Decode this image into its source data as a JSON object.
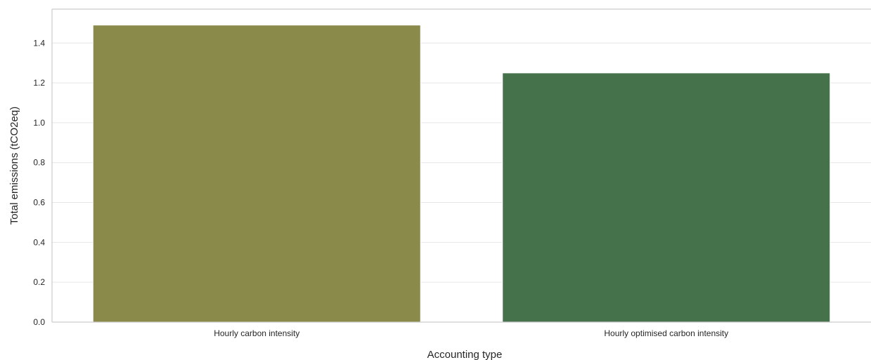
{
  "chart_data": {
    "type": "bar",
    "title": "",
    "xlabel": "Accounting type",
    "ylabel": "Total emissions (tCO2eq)",
    "categories": [
      "Hourly carbon intensity",
      "Hourly optimised carbon intensity"
    ],
    "values": [
      1.49,
      1.25
    ],
    "colors": [
      "#8a8a4b",
      "#45724b"
    ],
    "ylim": [
      0,
      1.57
    ],
    "yticks": [
      "0.0",
      "0.2",
      "0.4",
      "0.6",
      "0.8",
      "1.0",
      "1.2",
      "1.4"
    ],
    "grid": "horizontal",
    "legend": "none"
  },
  "style": {
    "background": "#ffffff",
    "grid_color": "#e6e6e6",
    "spine_color": "#cccccc",
    "text_color": "#262626"
  }
}
